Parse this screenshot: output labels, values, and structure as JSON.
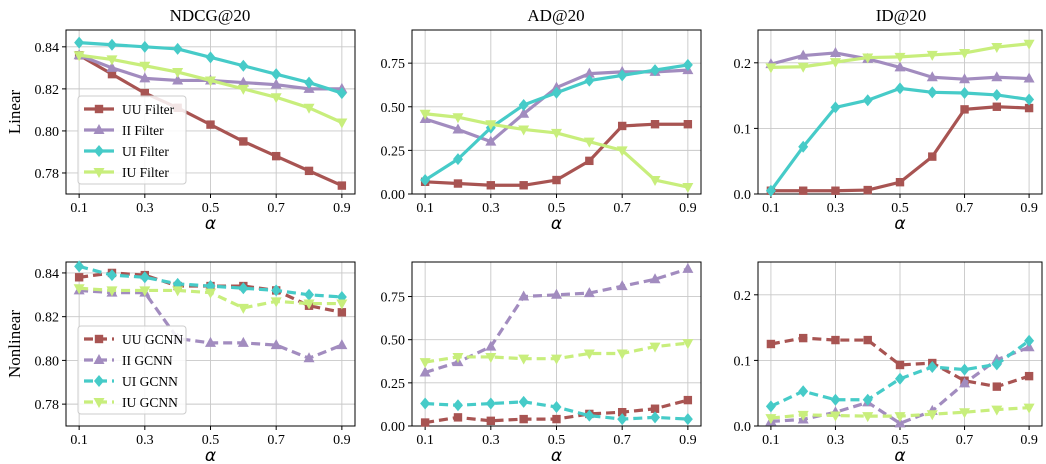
{
  "row_labels": [
    "Linear",
    "Nonlinear"
  ],
  "col_titles": [
    "NDCG@20",
    "AD@20",
    "ID@20"
  ],
  "colors": {
    "UU": "#a85452",
    "II": "#a28cbf",
    "UI": "#46cbc8",
    "IU": "#c8ee7c"
  },
  "chart_data": [
    {
      "type": "line",
      "title": "NDCG@20",
      "row_label": "Linear",
      "xlabel": "α",
      "ylabel": "",
      "x": [
        0.1,
        0.2,
        0.3,
        0.4,
        0.5,
        0.6,
        0.7,
        0.8,
        0.9
      ],
      "xticks": [
        "0.1",
        "0.3",
        "0.5",
        "0.7",
        "0.9"
      ],
      "ylim": [
        0.77,
        0.848
      ],
      "yticks": [
        "0.78",
        "0.80",
        "0.82",
        "0.84"
      ],
      "yticks_values": [
        0.78,
        0.8,
        0.82,
        0.84
      ],
      "grid": true,
      "legend": "left",
      "series": [
        {
          "name": "UU Filter",
          "values": [
            0.836,
            0.827,
            0.818,
            0.811,
            0.803,
            0.795,
            0.788,
            0.781,
            0.774
          ]
        },
        {
          "name": "II Filter",
          "values": [
            0.836,
            0.83,
            0.825,
            0.824,
            0.824,
            0.823,
            0.822,
            0.82,
            0.82
          ]
        },
        {
          "name": "UI Filter",
          "values": [
            0.842,
            0.841,
            0.84,
            0.839,
            0.835,
            0.831,
            0.827,
            0.823,
            0.818
          ]
        },
        {
          "name": "IU Filter",
          "values": [
            0.836,
            0.834,
            0.831,
            0.828,
            0.824,
            0.82,
            0.816,
            0.811,
            0.804
          ]
        }
      ]
    },
    {
      "type": "line",
      "title": "AD@20",
      "row_label": "Linear",
      "xlabel": "α",
      "ylabel": "",
      "x": [
        0.1,
        0.2,
        0.3,
        0.4,
        0.5,
        0.6,
        0.7,
        0.8,
        0.9
      ],
      "xticks": [
        "0.1",
        "0.3",
        "0.5",
        "0.7",
        "0.9"
      ],
      "ylim": [
        0,
        0.94
      ],
      "yticks": [
        "0.00",
        "0.25",
        "0.50",
        "0.75"
      ],
      "yticks_values": [
        0,
        0.25,
        0.5,
        0.75
      ],
      "grid": true,
      "legend": "",
      "series": [
        {
          "name": "UU Filter",
          "values": [
            0.07,
            0.06,
            0.05,
            0.05,
            0.08,
            0.19,
            0.39,
            0.4,
            0.4
          ]
        },
        {
          "name": "II Filter",
          "values": [
            0.43,
            0.37,
            0.3,
            0.46,
            0.61,
            0.69,
            0.7,
            0.7,
            0.71
          ]
        },
        {
          "name": "UI Filter",
          "values": [
            0.08,
            0.2,
            0.38,
            0.51,
            0.58,
            0.65,
            0.68,
            0.71,
            0.74
          ]
        },
        {
          "name": "IU Filter",
          "values": [
            0.46,
            0.44,
            0.4,
            0.37,
            0.35,
            0.3,
            0.25,
            0.08,
            0.04
          ]
        }
      ]
    },
    {
      "type": "line",
      "title": "ID@20",
      "row_label": "Linear",
      "xlabel": "α",
      "ylabel": "",
      "x": [
        0.1,
        0.2,
        0.3,
        0.4,
        0.5,
        0.6,
        0.7,
        0.8,
        0.9
      ],
      "xticks": [
        "0.1",
        "0.3",
        "0.5",
        "0.7",
        "0.9"
      ],
      "ylim": [
        0,
        0.25
      ],
      "yticks": [
        "0.0",
        "0.1",
        "0.2"
      ],
      "yticks_values": [
        0,
        0.1,
        0.2
      ],
      "grid": true,
      "legend": "",
      "series": [
        {
          "name": "UU Filter",
          "values": [
            0.005,
            0.005,
            0.005,
            0.006,
            0.018,
            0.057,
            0.129,
            0.133,
            0.131
          ]
        },
        {
          "name": "II Filter",
          "values": [
            0.198,
            0.211,
            0.215,
            0.206,
            0.193,
            0.178,
            0.175,
            0.178,
            0.176
          ]
        },
        {
          "name": "UI Filter",
          "values": [
            0.005,
            0.072,
            0.132,
            0.143,
            0.161,
            0.155,
            0.154,
            0.151,
            0.144
          ]
        },
        {
          "name": "IU Filter",
          "values": [
            0.193,
            0.194,
            0.201,
            0.208,
            0.209,
            0.212,
            0.215,
            0.224,
            0.229
          ]
        }
      ]
    },
    {
      "type": "line",
      "title": "",
      "row_label": "Nonlinear",
      "xlabel": "α",
      "ylabel": "",
      "x": [
        0.1,
        0.2,
        0.3,
        0.4,
        0.5,
        0.6,
        0.7,
        0.8,
        0.9
      ],
      "xticks": [
        "0.1",
        "0.3",
        "0.5",
        "0.7",
        "0.9"
      ],
      "ylim": [
        0.77,
        0.845
      ],
      "yticks": [
        "0.78",
        "0.80",
        "0.82",
        "0.84"
      ],
      "yticks_values": [
        0.78,
        0.8,
        0.82,
        0.84
      ],
      "grid": true,
      "legend": "left",
      "series": [
        {
          "name": "UU GCNN",
          "values": [
            0.838,
            0.84,
            0.839,
            0.834,
            0.834,
            0.834,
            0.832,
            0.825,
            0.822
          ]
        },
        {
          "name": "II GCNN",
          "values": [
            0.832,
            0.831,
            0.831,
            0.81,
            0.808,
            0.808,
            0.807,
            0.801,
            0.807
          ]
        },
        {
          "name": "UI GCNN",
          "values": [
            0.843,
            0.839,
            0.838,
            0.835,
            0.834,
            0.833,
            0.832,
            0.83,
            0.829
          ]
        },
        {
          "name": "IU GCNN",
          "values": [
            0.833,
            0.832,
            0.832,
            0.832,
            0.831,
            0.824,
            0.827,
            0.826,
            0.826
          ]
        }
      ]
    },
    {
      "type": "line",
      "title": "",
      "row_label": "Nonlinear",
      "xlabel": "α",
      "ylabel": "",
      "x": [
        0.1,
        0.2,
        0.3,
        0.4,
        0.5,
        0.6,
        0.7,
        0.8,
        0.9
      ],
      "xticks": [
        "0.1",
        "0.3",
        "0.5",
        "0.7",
        "0.9"
      ],
      "ylim": [
        0,
        0.95
      ],
      "yticks": [
        "0.00",
        "0.25",
        "0.50",
        "0.75"
      ],
      "yticks_values": [
        0,
        0.25,
        0.5,
        0.75
      ],
      "grid": true,
      "legend": "",
      "series": [
        {
          "name": "UU GCNN",
          "values": [
            0.02,
            0.05,
            0.03,
            0.04,
            0.04,
            0.07,
            0.08,
            0.1,
            0.15
          ]
        },
        {
          "name": "II GCNN",
          "values": [
            0.31,
            0.37,
            0.46,
            0.75,
            0.76,
            0.77,
            0.81,
            0.85,
            0.91
          ]
        },
        {
          "name": "UI GCNN",
          "values": [
            0.13,
            0.12,
            0.13,
            0.14,
            0.11,
            0.06,
            0.04,
            0.05,
            0.04
          ]
        },
        {
          "name": "IU GCNN",
          "values": [
            0.37,
            0.4,
            0.4,
            0.39,
            0.39,
            0.42,
            0.42,
            0.46,
            0.48
          ]
        }
      ]
    },
    {
      "type": "line",
      "title": "",
      "row_label": "Nonlinear",
      "xlabel": "α",
      "ylabel": "",
      "x": [
        0.1,
        0.2,
        0.3,
        0.4,
        0.5,
        0.6,
        0.7,
        0.8,
        0.9
      ],
      "xticks": [
        "0.1",
        "0.3",
        "0.5",
        "0.7",
        "0.9"
      ],
      "ylim": [
        0,
        0.25
      ],
      "yticks": [
        "0.0",
        "0.1",
        "0.2"
      ],
      "yticks_values": [
        0,
        0.1,
        0.2
      ],
      "grid": true,
      "legend": "",
      "series": [
        {
          "name": "UU GCNN",
          "values": [
            0.125,
            0.134,
            0.131,
            0.131,
            0.093,
            0.096,
            0.069,
            0.06,
            0.076
          ]
        },
        {
          "name": "II GCNN",
          "values": [
            0.007,
            0.01,
            0.021,
            0.036,
            0.004,
            0.023,
            0.065,
            0.101,
            0.12
          ]
        },
        {
          "name": "UI GCNN",
          "values": [
            0.03,
            0.053,
            0.04,
            0.04,
            0.072,
            0.09,
            0.086,
            0.094,
            0.13
          ]
        },
        {
          "name": "IU GCNN",
          "values": [
            0.012,
            0.017,
            0.016,
            0.015,
            0.015,
            0.018,
            0.021,
            0.025,
            0.028
          ]
        }
      ]
    }
  ]
}
